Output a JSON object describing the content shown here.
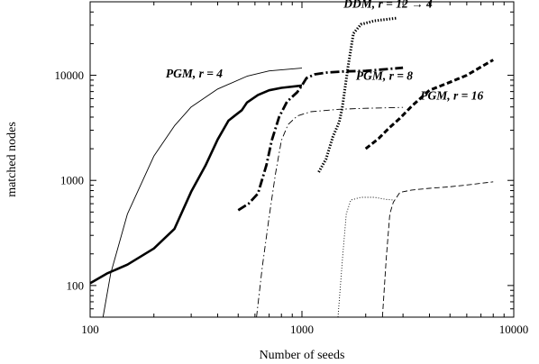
{
  "chart_data": {
    "type": "line",
    "title": "",
    "xlabel": "Number of seeds",
    "ylabel": "matched nodes",
    "xscale": "log",
    "yscale": "log",
    "xlim": [
      100,
      10000
    ],
    "ylim": [
      50,
      50000
    ],
    "x_ticks": [
      100,
      1000,
      10000
    ],
    "x_tick_labels": [
      "100",
      "1000",
      "10000"
    ],
    "y_ticks": [
      100,
      1000,
      10000
    ],
    "y_tick_labels": [
      "100",
      "1000",
      "10000"
    ],
    "grid": false,
    "legend": "none",
    "annotations": [
      {
        "text": "PGM, r = 4",
        "x": 310,
        "y": 9500,
        "anchor": "middle"
      },
      {
        "text": "PGM, r = 8",
        "x": 2450,
        "y": 9100,
        "anchor": "middle"
      },
      {
        "text": "PGM, r = 16",
        "x": 5100,
        "y": 5900,
        "anchor": "middle"
      },
      {
        "text": "DDM,  r = 12 → 4",
        "x": 2550,
        "y": 44000,
        "anchor": "middle"
      }
    ],
    "series": [
      {
        "style": "thin-solid",
        "points": [
          [
            115,
            50
          ],
          [
            125,
            130
          ],
          [
            150,
            480
          ],
          [
            200,
            1700
          ],
          [
            250,
            3300
          ],
          [
            300,
            5000
          ],
          [
            400,
            7400
          ],
          [
            550,
            9800
          ],
          [
            700,
            11000
          ],
          [
            1000,
            11700
          ]
        ]
      },
      {
        "style": "thick-solid",
        "points": [
          [
            100,
            105
          ],
          [
            120,
            130
          ],
          [
            150,
            158
          ],
          [
            200,
            225
          ],
          [
            250,
            345
          ],
          [
            300,
            780
          ],
          [
            350,
            1380
          ],
          [
            400,
            2450
          ],
          [
            450,
            3700
          ],
          [
            480,
            4100
          ],
          [
            520,
            4650
          ],
          [
            550,
            5500
          ],
          [
            620,
            6500
          ],
          [
            700,
            7200
          ],
          [
            800,
            7600
          ],
          [
            1000,
            8000
          ]
        ]
      },
      {
        "style": "thick-dashdot",
        "points": [
          [
            500,
            520
          ],
          [
            560,
            600
          ],
          [
            620,
            750
          ],
          [
            680,
            1400
          ],
          [
            720,
            2400
          ],
          [
            780,
            4000
          ],
          [
            850,
            5600
          ],
          [
            950,
            6900
          ],
          [
            1000,
            8000
          ],
          [
            1050,
            9400
          ],
          [
            1150,
            10200
          ],
          [
            1300,
            10600
          ],
          [
            1600,
            10900
          ],
          [
            2000,
            11000
          ],
          [
            3000,
            11800
          ]
        ]
      },
      {
        "style": "thin-dashdot",
        "points": [
          [
            610,
            50
          ],
          [
            650,
            150
          ],
          [
            700,
            450
          ],
          [
            750,
            1150
          ],
          [
            800,
            2400
          ],
          [
            860,
            3400
          ],
          [
            950,
            4100
          ],
          [
            1100,
            4500
          ],
          [
            1500,
            4750
          ],
          [
            2000,
            4850
          ],
          [
            3000,
            4950
          ]
        ]
      },
      {
        "style": "thick-dotted",
        "points": [
          [
            1200,
            1200
          ],
          [
            1300,
            1600
          ],
          [
            1400,
            2600
          ],
          [
            1500,
            3600
          ],
          [
            1550,
            4900
          ],
          [
            1650,
            12000
          ],
          [
            1750,
            25000
          ],
          [
            1900,
            30500
          ],
          [
            2200,
            33000
          ],
          [
            2800,
            35000
          ]
        ]
      },
      {
        "style": "thin-dotted",
        "points": [
          [
            1480,
            50
          ],
          [
            1560,
            200
          ],
          [
            1620,
            480
          ],
          [
            1700,
            650
          ],
          [
            1900,
            690
          ],
          [
            2200,
            690
          ],
          [
            2500,
            660
          ],
          [
            2700,
            650
          ]
        ]
      },
      {
        "style": "thick-dashed",
        "points": [
          [
            2000,
            2000
          ],
          [
            2300,
            2500
          ],
          [
            2600,
            3200
          ],
          [
            2900,
            3900
          ],
          [
            3300,
            5100
          ],
          [
            4000,
            7200
          ],
          [
            5000,
            8600
          ],
          [
            6000,
            10000
          ],
          [
            7000,
            12000
          ],
          [
            8000,
            14000
          ]
        ]
      },
      {
        "style": "thin-dashed",
        "points": [
          [
            2400,
            50
          ],
          [
            2500,
            180
          ],
          [
            2600,
            480
          ],
          [
            2700,
            620
          ],
          [
            2900,
            770
          ],
          [
            3300,
            810
          ],
          [
            4000,
            840
          ],
          [
            5000,
            870
          ],
          [
            6500,
            920
          ],
          [
            8000,
            970
          ]
        ]
      }
    ]
  }
}
